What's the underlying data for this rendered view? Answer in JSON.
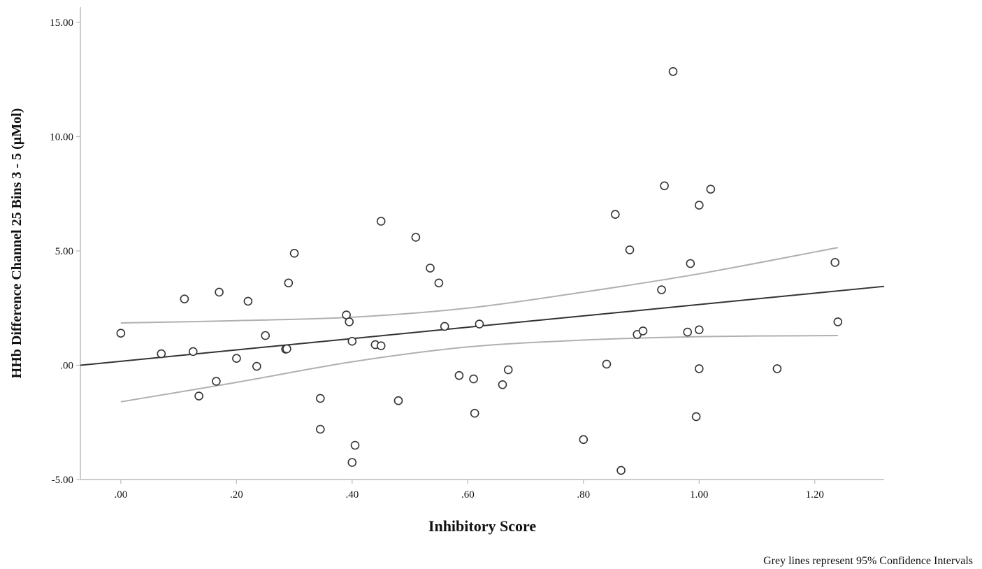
{
  "chart_data": {
    "type": "scatter",
    "title": "",
    "xlabel": "Inhibitory Score",
    "ylabel": "HHb Difference Channel 25 Bins 3 - 5 (µMol)",
    "note": "Grey lines represent 95% Confidence Intervals",
    "xlim": [
      -0.07,
      1.32
    ],
    "ylim": [
      -5,
      15
    ],
    "x_ticks": [
      0,
      0.2,
      0.4,
      0.6,
      0.8,
      1.0,
      1.2
    ],
    "x_tick_labels": [
      ".00",
      ".20",
      ".40",
      ".60",
      ".80",
      "1.00",
      "1.20"
    ],
    "y_ticks": [
      -5,
      0,
      5,
      10,
      15
    ],
    "y_tick_labels": [
      "-5.00",
      ".00",
      "5.00",
      "10.00",
      "15.00"
    ],
    "grid": false,
    "colors": {
      "points": "#333333",
      "fit_line": "#333333",
      "ci_lines": "#b0b0b0",
      "axes": "#bbbbbb"
    },
    "points": [
      {
        "x": 0.0,
        "y": 1.4
      },
      {
        "x": 0.07,
        "y": 0.5
      },
      {
        "x": 0.11,
        "y": 2.9
      },
      {
        "x": 0.125,
        "y": 0.6
      },
      {
        "x": 0.135,
        "y": -1.35
      },
      {
        "x": 0.165,
        "y": -0.7
      },
      {
        "x": 0.17,
        "y": 3.2
      },
      {
        "x": 0.2,
        "y": 0.3
      },
      {
        "x": 0.22,
        "y": 2.8
      },
      {
        "x": 0.235,
        "y": -0.05
      },
      {
        "x": 0.25,
        "y": 1.3
      },
      {
        "x": 0.285,
        "y": 0.7
      },
      {
        "x": 0.287,
        "y": 0.72
      },
      {
        "x": 0.29,
        "y": 3.6
      },
      {
        "x": 0.3,
        "y": 4.9
      },
      {
        "x": 0.345,
        "y": -1.45
      },
      {
        "x": 0.345,
        "y": -2.8
      },
      {
        "x": 0.39,
        "y": 2.2
      },
      {
        "x": 0.395,
        "y": 1.9
      },
      {
        "x": 0.4,
        "y": 1.05
      },
      {
        "x": 0.4,
        "y": -4.25
      },
      {
        "x": 0.405,
        "y": -3.5
      },
      {
        "x": 0.44,
        "y": 0.9
      },
      {
        "x": 0.45,
        "y": 0.85
      },
      {
        "x": 0.45,
        "y": 6.3
      },
      {
        "x": 0.48,
        "y": -1.55
      },
      {
        "x": 0.51,
        "y": 5.6
      },
      {
        "x": 0.535,
        "y": 4.25
      },
      {
        "x": 0.55,
        "y": 3.6
      },
      {
        "x": 0.56,
        "y": 1.7
      },
      {
        "x": 0.585,
        "y": -0.45
      },
      {
        "x": 0.61,
        "y": -0.6
      },
      {
        "x": 0.612,
        "y": -2.1
      },
      {
        "x": 0.62,
        "y": 1.8
      },
      {
        "x": 0.66,
        "y": -0.85
      },
      {
        "x": 0.67,
        "y": -0.2
      },
      {
        "x": 0.8,
        "y": -3.25
      },
      {
        "x": 0.84,
        "y": 0.05
      },
      {
        "x": 0.855,
        "y": 6.6
      },
      {
        "x": 0.865,
        "y": -4.6
      },
      {
        "x": 0.88,
        "y": 5.05
      },
      {
        "x": 0.893,
        "y": 1.35
      },
      {
        "x": 0.903,
        "y": 1.5
      },
      {
        "x": 0.935,
        "y": 3.3
      },
      {
        "x": 0.94,
        "y": 7.85
      },
      {
        "x": 0.955,
        "y": 12.85
      },
      {
        "x": 0.98,
        "y": 1.45
      },
      {
        "x": 0.985,
        "y": 4.45
      },
      {
        "x": 0.995,
        "y": -2.25
      },
      {
        "x": 1.0,
        "y": 7.0
      },
      {
        "x": 1.0,
        "y": 1.55
      },
      {
        "x": 1.0,
        "y": -0.15
      },
      {
        "x": 1.02,
        "y": 7.7
      },
      {
        "x": 1.135,
        "y": -0.15
      },
      {
        "x": 1.235,
        "y": 4.5
      },
      {
        "x": 1.24,
        "y": 1.9
      }
    ],
    "fit_line": {
      "x": [
        -0.07,
        1.32
      ],
      "y": [
        0.0,
        3.45
      ]
    },
    "ci_upper": {
      "x": [
        0.0,
        0.2,
        0.4,
        0.6,
        0.8,
        1.0,
        1.24
      ],
      "y": [
        1.85,
        1.95,
        2.1,
        2.5,
        3.2,
        4.0,
        5.15
      ]
    },
    "ci_lower": {
      "x": [
        0.0,
        0.2,
        0.4,
        0.6,
        0.8,
        1.0,
        1.24
      ],
      "y": [
        -1.6,
        -0.75,
        0.15,
        0.8,
        1.1,
        1.25,
        1.3
      ]
    }
  }
}
